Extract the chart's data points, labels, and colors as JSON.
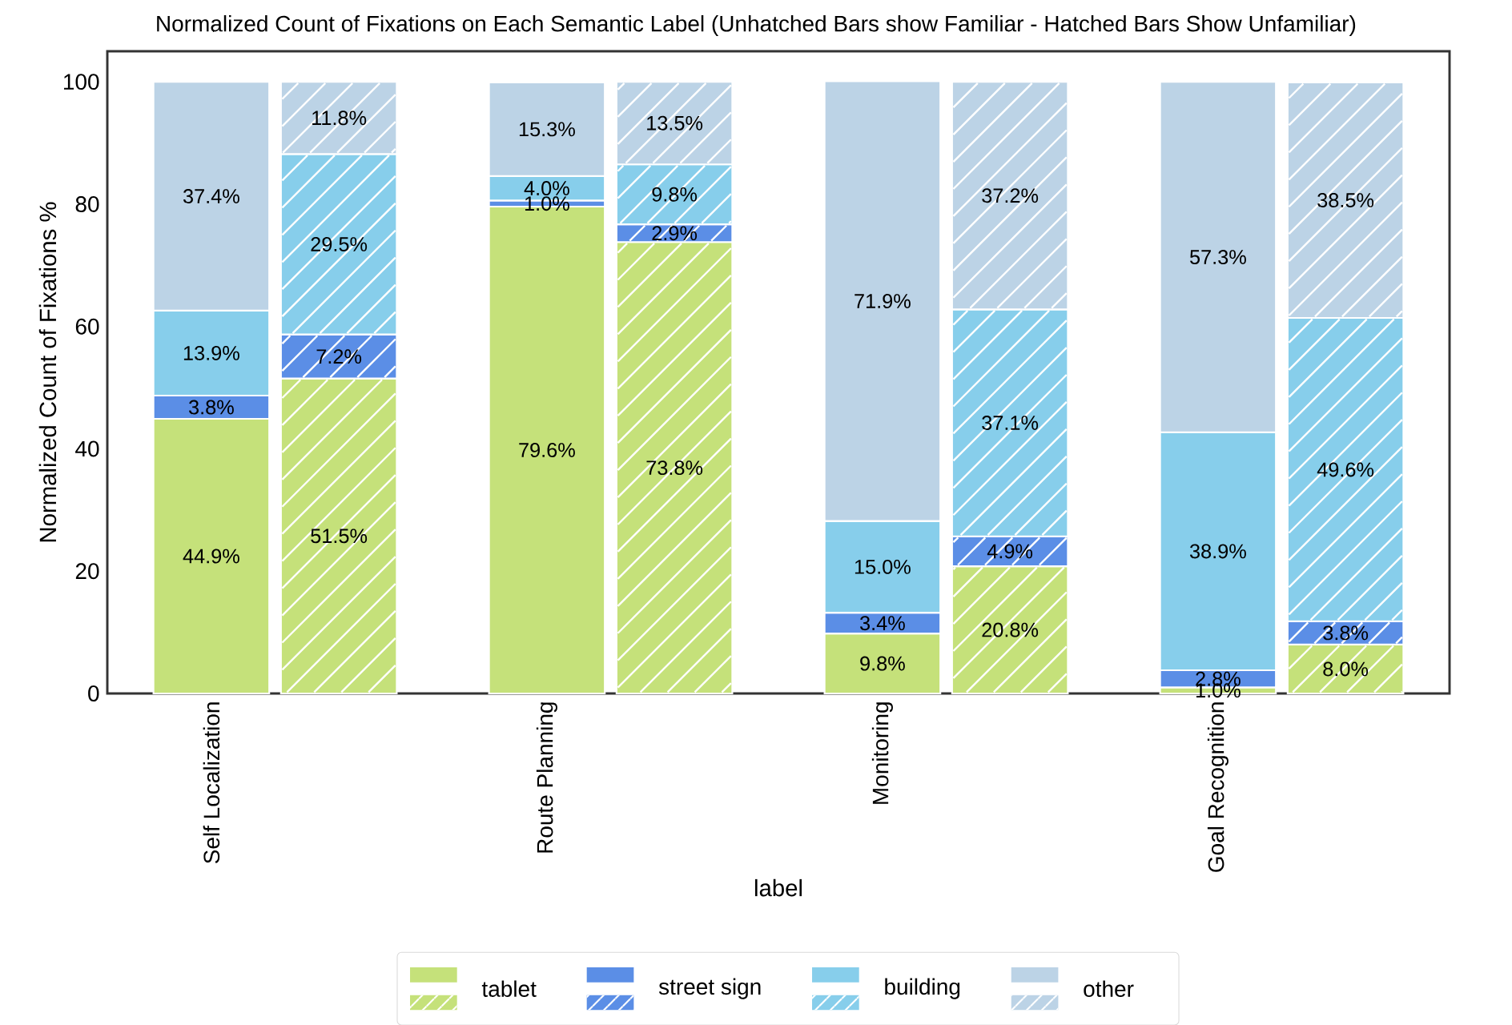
{
  "chart_data": {
    "type": "bar",
    "title": "Normalized Count of Fixations on Each Semantic Label (Unhatched Bars show Familiar - Hatched Bars Show Unfamiliar)",
    "xlabel": "label",
    "ylabel": "Normalized Count of Fixations %",
    "categories": [
      "Self Localization",
      null,
      "Route Planning",
      null,
      "Monitoring",
      null,
      "Goal Recognition",
      null
    ],
    "stacked": true,
    "legend": "bottom",
    "ylim": [
      0,
      105
    ],
    "yticks": [
      0,
      20,
      40,
      60,
      80,
      100
    ],
    "series": [
      {
        "name": "tablet",
        "color": "#c5e17a",
        "values": [
          44.9,
          51.5,
          79.6,
          73.8,
          9.8,
          20.8,
          1.0,
          8.0
        ],
        "value_labels": [
          "44.9%",
          "51.5%",
          "79.6%",
          "73.8%",
          "9.8%",
          "20.8%",
          "1.0%",
          "8.0%"
        ]
      },
      {
        "name": "street sign",
        "color": "#5b8ee6",
        "values": [
          3.8,
          7.2,
          1.0,
          2.9,
          3.4,
          4.9,
          2.8,
          3.8
        ],
        "value_labels": [
          "3.8%",
          "7.2%",
          "1.0%",
          "2.9%",
          "3.4%",
          "4.9%",
          "2.8%",
          "3.8%"
        ]
      },
      {
        "name": "building",
        "color": "#87ceeb",
        "values": [
          13.9,
          29.5,
          4.0,
          9.8,
          15.0,
          37.1,
          38.9,
          49.6
        ],
        "value_labels": [
          "13.9%",
          "29.5%",
          "4.0%",
          "9.8%",
          "15.0%",
          "37.1%",
          "38.9%",
          "49.6%"
        ]
      },
      {
        "name": "other",
        "color": "#bcd3e6",
        "values": [
          37.4,
          11.8,
          15.3,
          13.5,
          71.9,
          37.2,
          57.3,
          38.5
        ],
        "value_labels": [
          "37.4%",
          "11.8%",
          "15.3%",
          "13.5%",
          "71.9%",
          "37.2%",
          "57.3%",
          "38.5%"
        ]
      }
    ]
  }
}
